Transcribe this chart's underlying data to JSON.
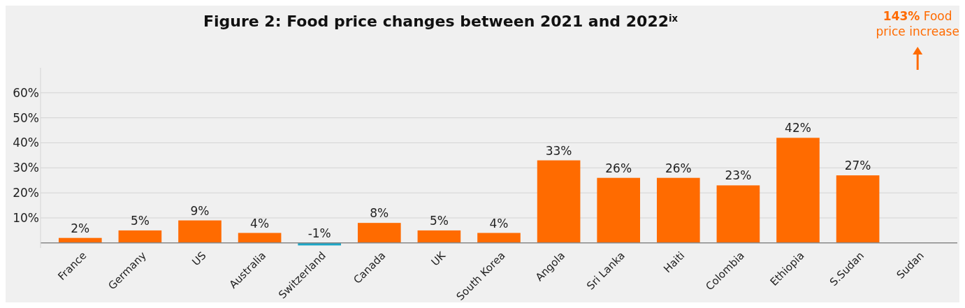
{
  "chart_data": {
    "type": "bar",
    "title": "Figure 2: Food price changes between 2021 and 2022$^{ix}$",
    "categories": [
      "France",
      "Germany",
      "US",
      "Australia",
      "Switzerland",
      "Canada",
      "UK",
      "South Korea",
      "Angola",
      "Sri Lanka",
      "Haiti",
      "Colombia",
      "Ethiopia",
      "S.Sudan",
      "Sudan"
    ],
    "values": [
      2,
      5,
      9,
      4,
      -1,
      8,
      5,
      4,
      33,
      26,
      26,
      23,
      42,
      27,
      null
    ],
    "colors": [
      "#ff6b00",
      "#ff6b00",
      "#ff6b00",
      "#ff6b00",
      "#1ba6c6",
      "#ff6b00",
      "#ff6b00",
      "#ff6b00",
      "#ff6b00",
      "#ff6b00",
      "#ff6b00",
      "#ff6b00",
      "#ff6b00",
      "#ff6b00",
      "#ff6b00"
    ],
    "value_labels": [
      "2%",
      "5%",
      "9%",
      "4%",
      "-1%",
      "8%",
      "5%",
      "4%",
      "33%",
      "26%",
      "26%",
      "23%",
      "42%",
      "27%",
      null
    ],
    "annotations": [
      "143% Food price increase"
    ],
    "ylim": [
      -2,
      70
    ],
    "yticks": [
      {
        "value": 10,
        "label": "10%"
      },
      {
        "value": 20,
        "label": "20%"
      },
      {
        "value": 30,
        "label": "30%"
      },
      {
        "value": 40,
        "label": "40%"
      },
      {
        "value": 50,
        "label": "50%"
      },
      {
        "value": 60,
        "label": "60%"
      }
    ],
    "grid": "y"
  }
}
